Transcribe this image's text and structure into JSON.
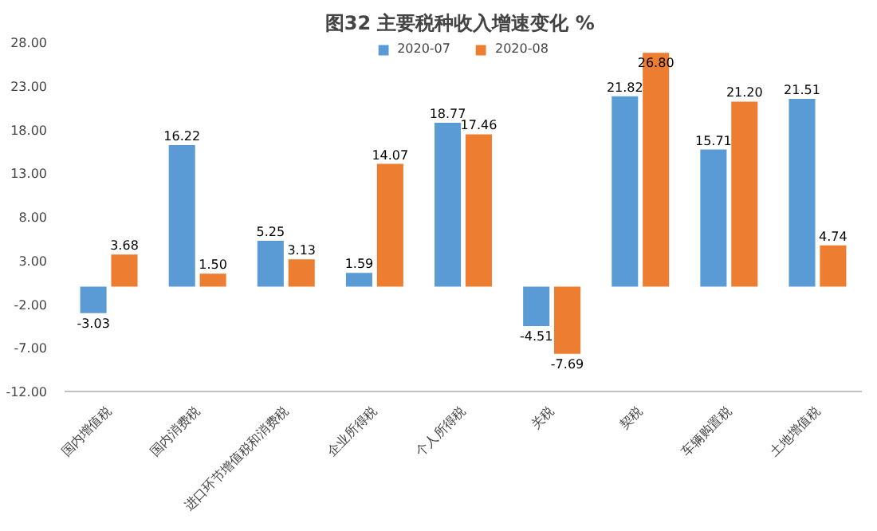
{
  "chart_data": {
    "type": "bar",
    "title": "图32  主要税种收入增速变化 %",
    "categories": [
      "国内增值税",
      "国内消费税",
      "进口环节增值税和消费税",
      "企业所得税",
      "个人所得税",
      "关税",
      "契税",
      "车辆购置税",
      "土地增值税"
    ],
    "series": [
      {
        "name": "2020-07",
        "color": "#5b9bd5",
        "values": [
          -3.03,
          16.22,
          5.25,
          1.59,
          18.77,
          -4.51,
          21.82,
          15.71,
          21.51
        ],
        "value_labels": [
          "-3.03",
          "16.22",
          "5.25",
          "1.59",
          "18.77",
          "-4.51",
          "21.82",
          "15.71",
          "21.51"
        ]
      },
      {
        "name": "2020-08",
        "color": "#ed7d31",
        "values": [
          3.68,
          1.5,
          3.13,
          14.07,
          17.46,
          -7.69,
          26.8,
          21.2,
          4.74
        ],
        "value_labels": [
          "3.68",
          "1.50",
          "3.13",
          "14.07",
          "17.46",
          "-7.69",
          "26.80",
          "21.20",
          "4.74"
        ]
      }
    ],
    "ylim": [
      -12,
      28
    ],
    "yticks": [
      {
        "value": -12,
        "label": "-12.00"
      },
      {
        "value": -7,
        "label": "-7.00"
      },
      {
        "value": -2,
        "label": "-2.00"
      },
      {
        "value": 3,
        "label": "3.00"
      },
      {
        "value": 8,
        "label": "8.00"
      },
      {
        "value": 13,
        "label": "13.00"
      },
      {
        "value": 18,
        "label": "18.00"
      },
      {
        "value": 23,
        "label": "23.00"
      },
      {
        "value": 28,
        "label": "28.00"
      }
    ],
    "grid": false,
    "legend": "top"
  }
}
